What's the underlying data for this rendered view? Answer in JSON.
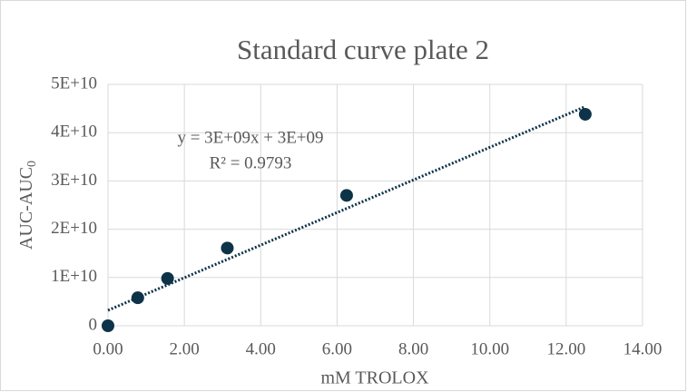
{
  "chart_data": {
    "type": "scatter",
    "title": "Standard curve plate 2",
    "x_label": "mM TROLOX",
    "y_label": "AUC-AUC",
    "y_label_subscript": "0",
    "x": [
      0,
      0.78,
      1.56,
      3.125,
      6.25,
      12.5
    ],
    "values": [
      0,
      5800000000,
      9800000000,
      16100000000,
      27000000000,
      43800000000
    ],
    "color": "#0d3349",
    "trendline": {
      "x": [
        0,
        12.5
      ],
      "values": [
        3200000000,
        45400000000
      ],
      "equation": "y = 3E+09x + 3E+09",
      "r_squared": "R² = 0.9793"
    },
    "xlim": [
      0,
      14
    ],
    "xticks": [
      {
        "value": 0,
        "label": "0.00"
      },
      {
        "value": 2,
        "label": "2.00"
      },
      {
        "value": 4,
        "label": "4.00"
      },
      {
        "value": 6,
        "label": "6.00"
      },
      {
        "value": 8,
        "label": "8.00"
      },
      {
        "value": 10,
        "label": "10.00"
      },
      {
        "value": 12,
        "label": "12.00"
      },
      {
        "value": 14,
        "label": "14.00"
      }
    ],
    "ylim": [
      0,
      50000000000
    ],
    "yticks": [
      0,
      {
        "value": 10000000000,
        "label": "1E+10"
      },
      {
        "value": 20000000000,
        "label": "2E+10"
      },
      {
        "value": 30000000000,
        "label": "3E+10"
      },
      {
        "value": 40000000000,
        "label": "4E+10"
      },
      {
        "value": 50000000000,
        "label": "5E+10"
      }
    ],
    "grid": true
  }
}
